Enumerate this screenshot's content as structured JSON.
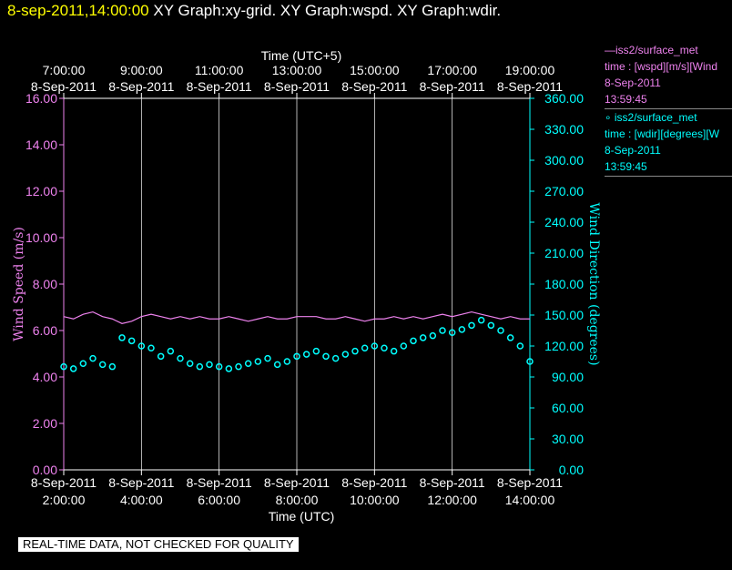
{
  "title": {
    "timestamp": "8-sep-2011,14:00:00",
    "rest": "XY Graph:xy-grid.  XY Graph:wspd.  XY Graph:wdir."
  },
  "legend": {
    "wspd": {
      "line1": "iss2/surface_met",
      "line2": "time : [wspd][m/s][Wind",
      "line3": "8-Sep-2011",
      "line4": "13:59:45",
      "marker": "line"
    },
    "wdir": {
      "line1": "iss2/surface_met",
      "line2": "time : [wdir][degrees][W",
      "line3": "8-Sep-2011",
      "line4": "13:59:45",
      "marker": "o"
    }
  },
  "footer_note": "REAL-TIME DATA, NOT CHECKED FOR QUALITY",
  "colors": {
    "wspd": "#ee82ee",
    "wdir": "#00ffff",
    "grid": "#ffffff",
    "background": "#000000"
  },
  "chart_data": {
    "type": "line",
    "top_axis_title": "Time (UTC+5)",
    "bottom_axis_title": "Time (UTC)",
    "ylabel_left": "Wind Speed (m/s)",
    "ylabel_right": "Wind Direction (degrees)",
    "x_range_utc_hours": [
      2.0,
      14.0
    ],
    "top_ticks": [
      {
        "time": "7:00:00",
        "date": "8-Sep-2011",
        "utc_hour": 2
      },
      {
        "time": "9:00:00",
        "date": "8-Sep-2011",
        "utc_hour": 4
      },
      {
        "time": "11:00:00",
        "date": "8-Sep-2011",
        "utc_hour": 6
      },
      {
        "time": "13:00:00",
        "date": "8-Sep-2011",
        "utc_hour": 8
      },
      {
        "time": "15:00:00",
        "date": "8-Sep-2011",
        "utc_hour": 10
      },
      {
        "time": "17:00:00",
        "date": "8-Sep-2011",
        "utc_hour": 12
      },
      {
        "time": "19:00:00",
        "date": "8-Sep-2011",
        "utc_hour": 14
      }
    ],
    "bottom_ticks": [
      {
        "time": "2:00:00",
        "date": "8-Sep-2011",
        "utc_hour": 2
      },
      {
        "time": "4:00:00",
        "date": "8-Sep-2011",
        "utc_hour": 4
      },
      {
        "time": "6:00:00",
        "date": "8-Sep-2011",
        "utc_hour": 6
      },
      {
        "time": "8:00:00",
        "date": "8-Sep-2011",
        "utc_hour": 8
      },
      {
        "time": "10:00:00",
        "date": "8-Sep-2011",
        "utc_hour": 10
      },
      {
        "time": "12:00:00",
        "date": "8-Sep-2011",
        "utc_hour": 12
      },
      {
        "time": "14:00:00",
        "date": "8-Sep-2011",
        "utc_hour": 14
      }
    ],
    "left_ticks": [
      "0.00",
      "2.00",
      "4.00",
      "6.00",
      "8.00",
      "10.00",
      "12.00",
      "14.00",
      "16.00"
    ],
    "left_ylim": [
      0,
      16
    ],
    "right_ticks": [
      "0.00",
      "30.00",
      "60.00",
      "90.00",
      "120.00",
      "150.00",
      "180.00",
      "210.00",
      "240.00",
      "270.00",
      "300.00",
      "330.00",
      "360.00"
    ],
    "right_ylim": [
      0,
      360
    ],
    "grid": "vertical",
    "series": [
      {
        "name": "iss2/surface_met",
        "axis": "left",
        "style": "line",
        "x_utc_hours": [
          2.0,
          2.25,
          2.5,
          2.75,
          3.0,
          3.25,
          3.5,
          3.75,
          4.0,
          4.25,
          4.5,
          4.75,
          5.0,
          5.25,
          5.5,
          5.75,
          6.0,
          6.25,
          6.5,
          6.75,
          7.0,
          7.25,
          7.5,
          7.75,
          8.0,
          8.25,
          8.5,
          8.75,
          9.0,
          9.25,
          9.5,
          9.75,
          10.0,
          10.25,
          10.5,
          10.75,
          11.0,
          11.25,
          11.5,
          11.75,
          12.0,
          12.25,
          12.5,
          12.75,
          13.0,
          13.25,
          13.5,
          13.75,
          14.0
        ],
        "values": [
          6.6,
          6.5,
          6.7,
          6.8,
          6.6,
          6.5,
          6.3,
          6.4,
          6.6,
          6.7,
          6.6,
          6.5,
          6.6,
          6.5,
          6.6,
          6.5,
          6.5,
          6.6,
          6.5,
          6.4,
          6.5,
          6.6,
          6.5,
          6.5,
          6.6,
          6.6,
          6.6,
          6.5,
          6.5,
          6.6,
          6.5,
          6.4,
          6.5,
          6.5,
          6.6,
          6.5,
          6.6,
          6.5,
          6.6,
          6.7,
          6.6,
          6.7,
          6.8,
          6.7,
          6.6,
          6.5,
          6.6,
          6.5,
          6.5
        ]
      },
      {
        "name": "iss2/surface_met",
        "axis": "right",
        "style": "scatter",
        "x_utc_hours": [
          2.0,
          2.25,
          2.5,
          2.75,
          3.0,
          3.25,
          3.5,
          3.75,
          4.0,
          4.25,
          4.5,
          4.75,
          5.0,
          5.25,
          5.5,
          5.75,
          6.0,
          6.25,
          6.5,
          6.75,
          7.0,
          7.25,
          7.5,
          7.75,
          8.0,
          8.25,
          8.5,
          8.75,
          9.0,
          9.25,
          9.5,
          9.75,
          10.0,
          10.25,
          10.5,
          10.75,
          11.0,
          11.25,
          11.5,
          11.75,
          12.0,
          12.25,
          12.5,
          12.75,
          13.0,
          13.25,
          13.5,
          13.75,
          14.0
        ],
        "values": [
          100,
          98,
          103,
          108,
          102,
          100,
          128,
          125,
          120,
          118,
          110,
          115,
          108,
          103,
          100,
          102,
          100,
          98,
          100,
          103,
          105,
          108,
          102,
          105,
          110,
          112,
          115,
          110,
          108,
          112,
          115,
          118,
          120,
          118,
          115,
          120,
          125,
          128,
          130,
          135,
          133,
          136,
          140,
          145,
          140,
          135,
          128,
          120,
          105
        ]
      }
    ]
  }
}
